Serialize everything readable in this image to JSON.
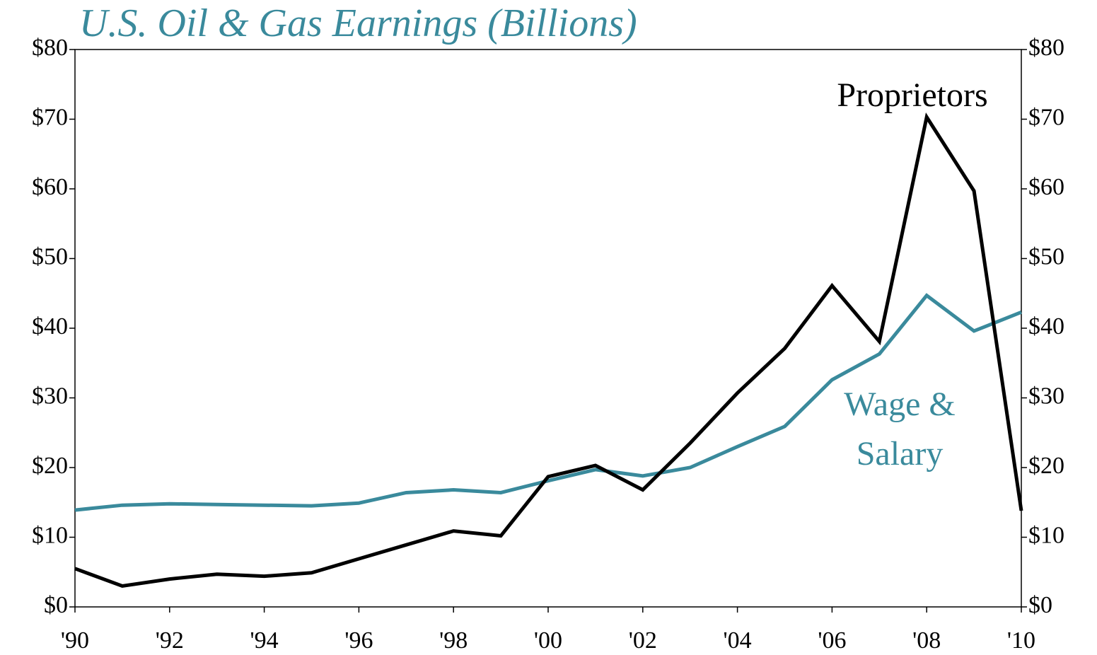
{
  "chart_data": {
    "type": "line",
    "title": "U.S. Oil & Gas Earnings (Billions)",
    "categories": [
      "'90",
      null,
      "'92",
      null,
      "'94",
      null,
      "'96",
      null,
      "'98",
      null,
      "'00",
      null,
      "'02",
      null,
      "'04",
      null,
      "'06",
      null,
      "'08",
      null,
      "'10"
    ],
    "series": [
      {
        "name": "Proprietors",
        "color": "#000000",
        "values": [
          5.5,
          3.0,
          4.0,
          4.7,
          4.4,
          4.9,
          6.9,
          8.9,
          10.9,
          10.2,
          18.7,
          20.3,
          16.8,
          23.5,
          30.7,
          37.1,
          46.1,
          38.1,
          70.3,
          59.7,
          13.8
        ]
      },
      {
        "name": "Wage & Salary",
        "color": "#3a8a9c",
        "values": [
          13.9,
          14.6,
          14.8,
          14.7,
          14.6,
          14.5,
          14.9,
          16.4,
          16.8,
          16.4,
          18.1,
          19.7,
          18.8,
          20.0,
          23.0,
          25.9,
          32.6,
          36.3,
          44.7,
          39.6,
          42.3
        ]
      }
    ],
    "ylim": [
      0,
      80
    ],
    "yticks": [
      {
        "value": 0,
        "label": "$0"
      },
      {
        "value": 10,
        "label": "$10"
      },
      {
        "value": 20,
        "label": "$20"
      },
      {
        "value": 30,
        "label": "$30"
      },
      {
        "value": 40,
        "label": "$40"
      },
      {
        "value": 50,
        "label": "$50"
      },
      {
        "value": 60,
        "label": "$60"
      },
      {
        "value": 70,
        "label": "$70"
      },
      {
        "value": 80,
        "label": "$80"
      }
    ],
    "y2lim": [
      0,
      80
    ],
    "y2ticks": [
      {
        "value": 0,
        "label": "$0"
      },
      {
        "value": 10,
        "label": "$10"
      },
      {
        "value": 20,
        "label": "$20"
      },
      {
        "value": 30,
        "label": "$30"
      },
      {
        "value": 40,
        "label": "$40"
      },
      {
        "value": 50,
        "label": "$50"
      },
      {
        "value": 60,
        "label": "$60"
      },
      {
        "value": 70,
        "label": "$70"
      },
      {
        "value": 80,
        "label": "$80"
      }
    ],
    "grid": false
  }
}
